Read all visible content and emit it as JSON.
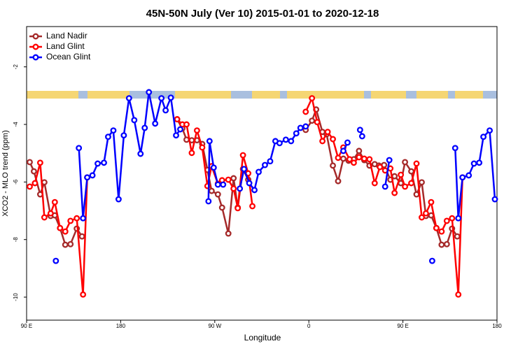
{
  "chart_data": {
    "type": "line",
    "title": "45N-50N July (Ver 10)   2015-01-01 to 2020-12-18",
    "xlabel": "Longitude",
    "ylabel": "XCO2 - MLO trend (ppm)",
    "xlim": [
      90,
      540
    ],
    "ylim": [
      -10.8,
      -0.6
    ],
    "xticks": [
      {
        "value": 90,
        "label": "90 E"
      },
      {
        "value": 180,
        "label": "180"
      },
      {
        "value": 270,
        "label": "90 W"
      },
      {
        "value": 360,
        "label": "0"
      },
      {
        "value": 450,
        "label": "90 E"
      },
      {
        "value": 540,
        "label": "180"
      }
    ],
    "yticks": [
      -10,
      -8,
      -6,
      -4,
      -2
    ],
    "legend": "upper left",
    "series": [
      {
        "name": "Land Nadir",
        "color": "#a52a2a",
        "x": [
          93,
          97,
          103,
          107,
          113,
          117,
          122,
          127,
          132,
          138,
          143,
          null,
          234,
          239,
          243,
          248,
          253,
          258,
          263,
          267,
          273,
          277,
          283,
          288,
          292,
          297,
          302,
          null,
          357,
          363,
          367,
          373,
          377,
          383,
          388,
          393,
          398,
          403,
          408,
          413,
          418,
          423,
          427,
          432,
          438,
          442,
          448,
          452,
          458,
          463,
          468,
          472,
          477,
          482,
          487,
          492,
          497,
          502
        ],
        "values": [
          -5.31,
          -5.63,
          -6.43,
          -6.01,
          -7.18,
          -7.16,
          -7.6,
          -8.18,
          -8.16,
          -7.62,
          -7.89,
          null,
          -3.82,
          -4.14,
          -4.53,
          -4.55,
          -4.55,
          -4.68,
          -5.58,
          -6.31,
          -6.43,
          -6.89,
          -7.79,
          -5.87,
          -6.89,
          -5.55,
          -5.92,
          null,
          -4.19,
          -3.87,
          -3.48,
          -4.26,
          -4.34,
          -5.43,
          -5.97,
          -5.19,
          -5.26,
          -5.21,
          -4.92,
          -5.24,
          -5.43,
          -5.38,
          -5.43,
          -5.41,
          -5.92,
          -5.8,
          -6.04,
          -5.31,
          -5.63,
          -6.43,
          -6.01,
          -7.18,
          -7.16,
          -7.6,
          -8.18,
          -8.16,
          -7.62,
          -7.89
        ]
      },
      {
        "name": "Land Glint",
        "color": "#ff0000",
        "x": [
          93,
          98,
          103,
          107,
          113,
          117,
          122,
          127,
          132,
          138,
          144,
          148,
          null,
          234,
          239,
          243,
          248,
          253,
          258,
          263,
          267,
          273,
          277,
          283,
          288,
          292,
          297,
          302,
          306,
          null,
          357,
          363,
          368,
          373,
          378,
          383,
          388,
          393,
          399,
          403,
          408,
          413,
          418,
          423,
          428,
          433,
          438,
          442,
          448,
          452,
          458,
          463,
          468,
          472,
          477,
          482,
          487,
          492,
          497,
          503,
          507
        ],
        "values": [
          -6.16,
          -6.04,
          -5.33,
          -7.23,
          -7.09,
          -6.7,
          -7.6,
          -7.72,
          -7.35,
          -7.26,
          -9.91,
          -5.84,
          null,
          -3.82,
          -4.0,
          -4.0,
          -4.99,
          -4.21,
          -4.8,
          -6.14,
          -5.45,
          -6.06,
          -5.94,
          -5.92,
          -6.23,
          -6.91,
          -5.07,
          -5.7,
          -6.84,
          null,
          -3.56,
          -3.09,
          -3.92,
          -4.58,
          -4.26,
          -4.51,
          -5.16,
          -4.8,
          -5.21,
          -5.33,
          -5.14,
          -5.19,
          -5.21,
          -6.04,
          -5.48,
          -5.6,
          -5.53,
          -6.38,
          -5.75,
          -6.16,
          -6.04,
          -5.36,
          -7.23,
          -7.09,
          -6.7,
          -7.6,
          -7.72,
          -7.35,
          -7.26,
          -9.91,
          -5.84
        ]
      },
      {
        "name": "Ocean Glint",
        "color": "#0000ff",
        "x": [
          118,
          null,
          140,
          144,
          148,
          153,
          158,
          164,
          168,
          173,
          178,
          183,
          188,
          193,
          199,
          203,
          207,
          213,
          219,
          223,
          228,
          233,
          237,
          null,
          264,
          265,
          269,
          273,
          278,
          null,
          294,
          298,
          303,
          308,
          312,
          318,
          323,
          328,
          332,
          338,
          343,
          348,
          352,
          357,
          null,
          393,
          397,
          null,
          409,
          411,
          null,
          433,
          437,
          null,
          478,
          null,
          500,
          503,
          507,
          513,
          518,
          523,
          527,
          533,
          538
        ],
        "values": [
          -8.74,
          null,
          -4.82,
          -7.26,
          -5.84,
          -5.77,
          -5.36,
          -5.33,
          -4.43,
          -4.21,
          -6.6,
          -4.38,
          -3.09,
          -3.85,
          -5.02,
          -4.12,
          -2.88,
          -3.97,
          -3.09,
          -3.51,
          -3.07,
          -4.38,
          -4.17,
          null,
          -6.67,
          -4.58,
          -5.5,
          -6.09,
          -6.09,
          null,
          -6.23,
          -5.55,
          -6.04,
          -6.28,
          -5.65,
          -5.41,
          -5.28,
          -4.58,
          -4.65,
          -4.53,
          -4.58,
          -4.31,
          -4.12,
          -4.07,
          null,
          -4.92,
          -4.63,
          null,
          -4.19,
          -4.41,
          null,
          -6.16,
          -5.24,
          null,
          -8.74,
          null,
          -4.82,
          -7.26,
          -5.84,
          -5.77,
          -5.36,
          -5.33,
          -4.43,
          -4.21,
          -6.6
        ]
      }
    ]
  }
}
